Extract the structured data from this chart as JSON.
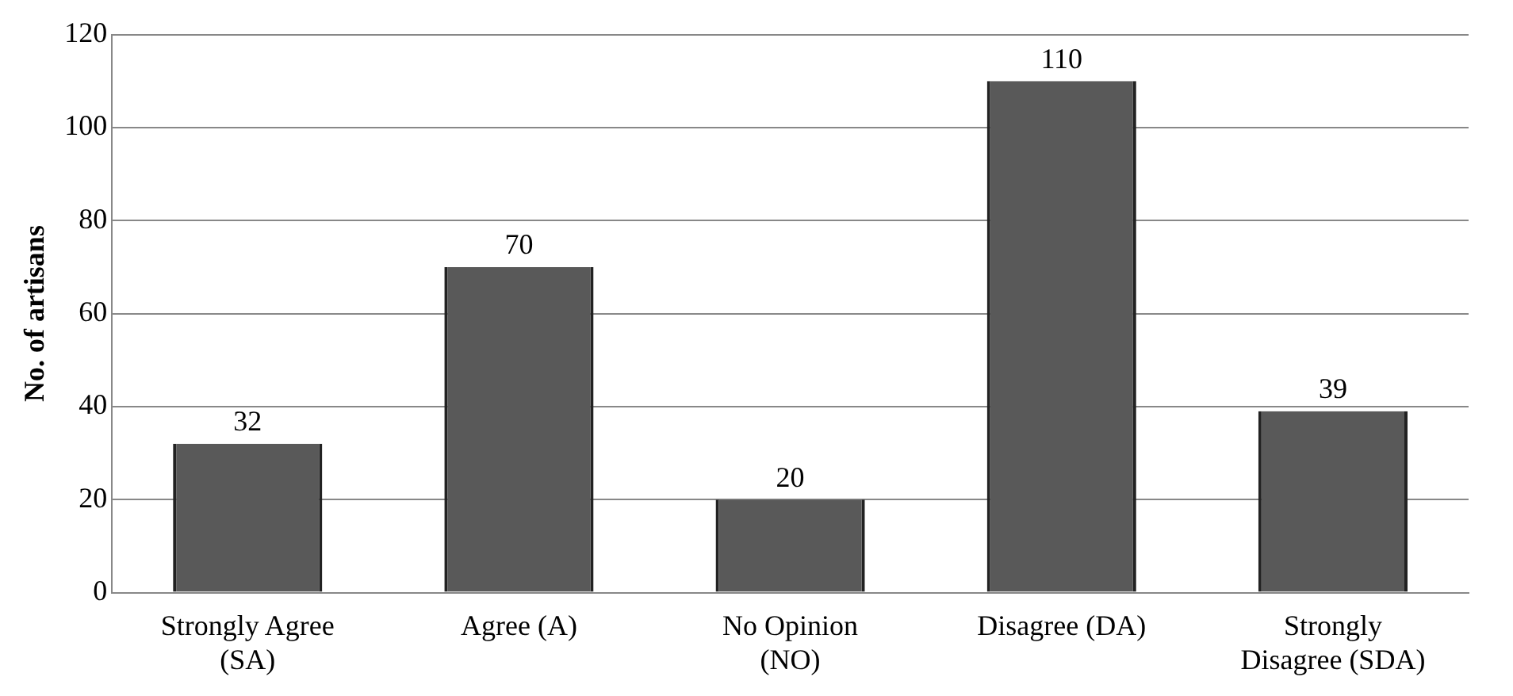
{
  "chart_data": {
    "type": "bar",
    "ylabel": "No. of artisans",
    "categories": [
      "Strongly Agree (SA)",
      "Agree (A)",
      "No Opinion (NO)",
      "Disagree (DA)",
      "Strongly Disagree (SDA)"
    ],
    "values": [
      32,
      70,
      20,
      110,
      39
    ],
    "color": "#595959",
    "ylim": [
      0,
      120
    ],
    "yticks": [
      0,
      20,
      40,
      60,
      80,
      100,
      120
    ],
    "grid": "y",
    "data_labels": true,
    "legend": false
  }
}
